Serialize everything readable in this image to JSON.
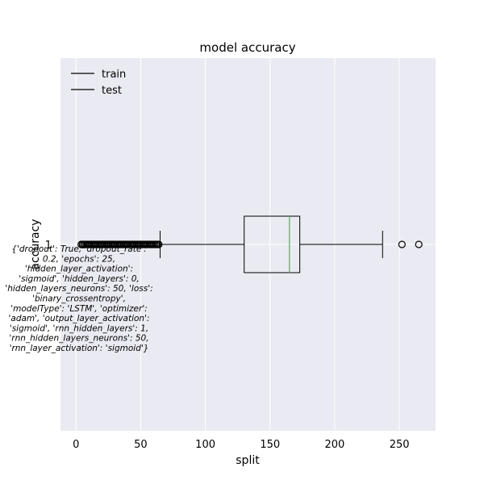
{
  "chart_data": {
    "type": "boxplot",
    "title": "model accuracy",
    "xlabel": "split",
    "ylabel": "accuracy",
    "xlim": [
      -12,
      278
    ],
    "x_ticks": [
      0,
      50,
      100,
      150,
      200,
      250
    ],
    "y_ticks": [
      "1"
    ],
    "grid": true,
    "legend": {
      "placement": "top-left",
      "entries": [
        "train",
        "test"
      ]
    },
    "box": {
      "category": "1",
      "whisker_low": 65,
      "q1": 130,
      "median": 165,
      "q3": 173,
      "whisker_high": 237,
      "outliers_high": [
        252,
        265
      ],
      "outliers_low": [
        4,
        5,
        6,
        7,
        8,
        9,
        10,
        11,
        12,
        13,
        14,
        15,
        16,
        17,
        18,
        19,
        20,
        21,
        22,
        23,
        24,
        25,
        26,
        27,
        28,
        29,
        30,
        31,
        32,
        33,
        34,
        35,
        36,
        37,
        38,
        39,
        40,
        41,
        42,
        43,
        44,
        45,
        46,
        47,
        48,
        49,
        50,
        51,
        52,
        53,
        54,
        55,
        56,
        57,
        58,
        59,
        60,
        61,
        62,
        63,
        64
      ],
      "low_median_marker": 5
    },
    "annotation": [
      "{'dropout': True, 'dropout_rate':",
      "0.2, 'epochs': 25,",
      "'hidden_layer_activation':",
      "'sigmoid', 'hidden_layers': 0,",
      "'hidden_layers_neurons': 50, 'loss':",
      "'binary_crossentropy',",
      "'modelType': 'LSTM', 'optimizer':",
      "'adam', 'output_layer_activation':",
      "'sigmoid', 'rnn_hidden_layers': 1,",
      "'rnn_hidden_layers_neurons': 50,",
      "'rnn_layer_activation': 'sigmoid'}"
    ],
    "colors": {
      "plot_background": "#eaeaf2",
      "grid": "#ffffff",
      "box": "#000000",
      "median": "#55a868"
    }
  }
}
